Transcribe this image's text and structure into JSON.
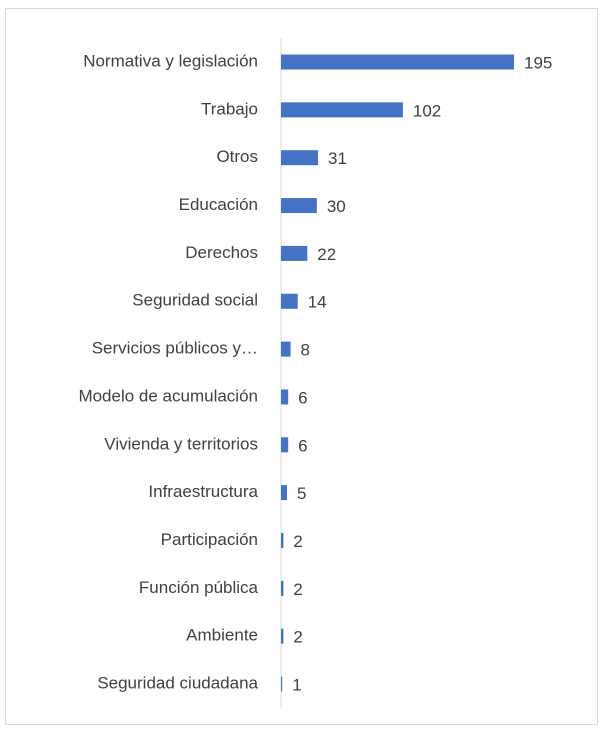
{
  "chart_data": {
    "type": "bar",
    "orientation": "horizontal",
    "categories": [
      "Normativa y legislación",
      "Trabajo",
      "Otros",
      "Educación",
      "Derechos",
      "Seguridad social",
      "Servicios públicos y…",
      "Modelo de acumulación",
      "Vivienda y territorios",
      "Infraestructura",
      "Participación",
      "Función pública",
      "Ambiente",
      "Seguridad ciudadana"
    ],
    "values": [
      195,
      102,
      31,
      30,
      22,
      14,
      8,
      6,
      6,
      5,
      2,
      2,
      2,
      1
    ],
    "color": "#4472c4",
    "xlim": [
      0,
      200
    ]
  }
}
